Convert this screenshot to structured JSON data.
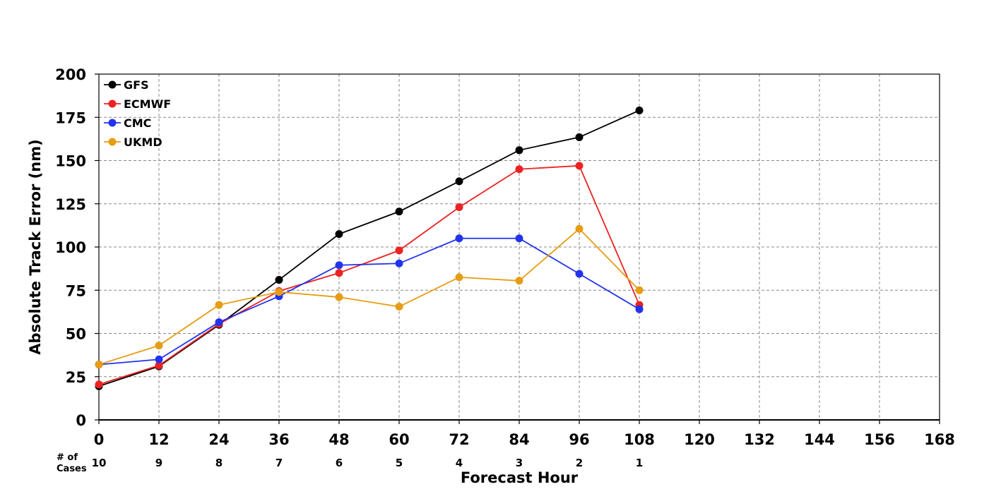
{
  "chart_data": {
    "type": "line",
    "xlabel": "Forecast Hour",
    "ylabel": "Absolute Track Error (nm)",
    "xlim": [
      0,
      168
    ],
    "ylim": [
      0,
      200
    ],
    "x_ticks": [
      0,
      12,
      24,
      36,
      48,
      60,
      72,
      84,
      96,
      108,
      120,
      132,
      144,
      156,
      168
    ],
    "y_ticks": [
      0,
      25,
      50,
      75,
      100,
      125,
      150,
      175,
      200
    ],
    "grid": true,
    "legend_position": "top-left",
    "cases_label": [
      "# of",
      "Cases"
    ],
    "cases": [
      {
        "x": 0,
        "count": "10"
      },
      {
        "x": 12,
        "count": "9"
      },
      {
        "x": 24,
        "count": "8"
      },
      {
        "x": 36,
        "count": "7"
      },
      {
        "x": 48,
        "count": "6"
      },
      {
        "x": 60,
        "count": "5"
      },
      {
        "x": 72,
        "count": "4"
      },
      {
        "x": 84,
        "count": "3"
      },
      {
        "x": 96,
        "count": "2"
      },
      {
        "x": 108,
        "count": "1"
      }
    ],
    "x": [
      0,
      12,
      24,
      36,
      48,
      60,
      72,
      84,
      96,
      108
    ],
    "series": [
      {
        "name": "GFS",
        "color": "#000000",
        "values": [
          19.5,
          31,
          55,
          81,
          107.5,
          120.5,
          138,
          156,
          163.5,
          179
        ]
      },
      {
        "name": "ECMWF",
        "color": "#ee2222",
        "values": [
          20.5,
          31.5,
          55.5,
          74.5,
          85,
          98,
          123,
          145,
          147,
          66.5
        ]
      },
      {
        "name": "CMC",
        "color": "#2233ee",
        "values": [
          32,
          35,
          56.5,
          71.5,
          89.5,
          90.5,
          105,
          105,
          84.5,
          64
        ]
      },
      {
        "name": "UKMD",
        "color": "#e69d14",
        "values": [
          32,
          43,
          66.5,
          74,
          71,
          65.5,
          82.5,
          80.5,
          110.5,
          75
        ]
      }
    ]
  }
}
